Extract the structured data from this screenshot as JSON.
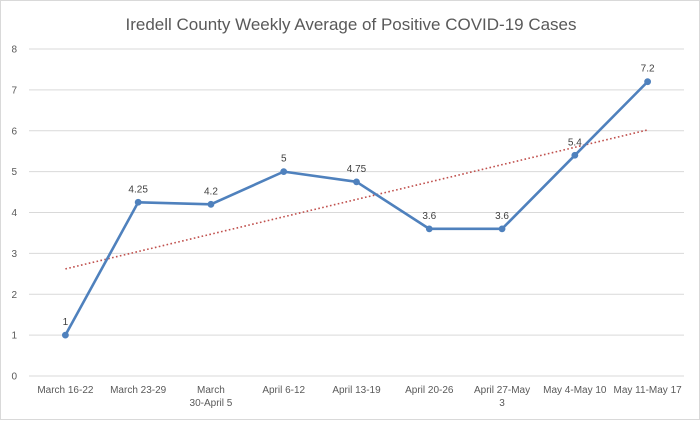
{
  "chart_data": {
    "type": "line",
    "title": "Iredell County Weekly Average of Positive COVID-19 Cases",
    "xlabel": "",
    "ylabel": "",
    "ylim": [
      0,
      8
    ],
    "yticks": [
      "0",
      "1",
      "2",
      "3",
      "4",
      "5",
      "6",
      "7",
      "8"
    ],
    "grid": true,
    "legend": "none",
    "categories": [
      "March 16-22",
      "March 23-29",
      "March 30-April 5",
      "April 6-12",
      "April 13-19",
      "April 20-26",
      "April 27-May 3",
      "May 4-May 10",
      "May 11-May 17"
    ],
    "series": [
      {
        "values": [
          1,
          4.25,
          4.2,
          5,
          4.75,
          3.6,
          3.6,
          5.4,
          7.2
        ],
        "labels": [
          "1",
          "4.25",
          "4.2",
          "5",
          "4.75",
          "3.6",
          "3.6",
          "5.4",
          "7.2"
        ],
        "color": "#4f81bd"
      }
    ],
    "trendline": {
      "type": "linear",
      "start": 2.62,
      "end": 6.02,
      "color": "#c0504d",
      "style": "dotted"
    }
  }
}
